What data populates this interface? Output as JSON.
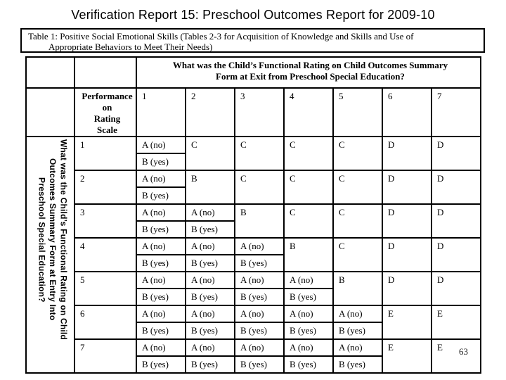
{
  "slide": {
    "title": "Verification Report 15: Preschool Outcomes Report for 2009-10",
    "page_number": "63"
  },
  "caption": {
    "line1": "Table 1: Positive Social Emotional Skills (Tables 2-3 for Acquisition of Knowledge and Skills and Use of",
    "line2": "Appropriate Behaviors to Meet Their Needs)"
  },
  "matrix": {
    "exit_header": "What was the Child’s Functional Rating on Child Outcomes Summary\nForm at Exit from Preschool Special Education?",
    "entry_header": "What was the Child’s Functional Rating on Child\nOutcomes Summary Form at Entry Into\nPreschool Special Education?",
    "scale_label": "Performance\non\nRating\nScale",
    "column_numbers": [
      "1",
      "2",
      "3",
      "4",
      "5",
      "6",
      "7"
    ],
    "ab_no": "A (no)",
    "ab_yes": "B (yes)",
    "rows": [
      {
        "num": "1",
        "ab_count": 1,
        "rest": [
          "C",
          "C",
          "C",
          "C",
          "D",
          "D"
        ]
      },
      {
        "num": "2",
        "ab_count": 1,
        "rest": [
          "B",
          "C",
          "C",
          "C",
          "D",
          "D"
        ]
      },
      {
        "num": "3",
        "ab_count": 2,
        "rest": [
          "B",
          "C",
          "C",
          "D",
          "D"
        ]
      },
      {
        "num": "4",
        "ab_count": 3,
        "rest": [
          "B",
          "C",
          "D",
          "D"
        ]
      },
      {
        "num": "5",
        "ab_count": 4,
        "rest": [
          "B",
          "D",
          "D"
        ]
      },
      {
        "num": "6",
        "ab_count": 5,
        "rest": [
          "E",
          "E"
        ]
      },
      {
        "num": "7",
        "ab_count": 5,
        "rest": [
          "E",
          "E"
        ]
      }
    ],
    "colors": {
      "header_fill": "#d9d9d9",
      "border": "#000000",
      "cell_fill": "#ffffff"
    }
  }
}
